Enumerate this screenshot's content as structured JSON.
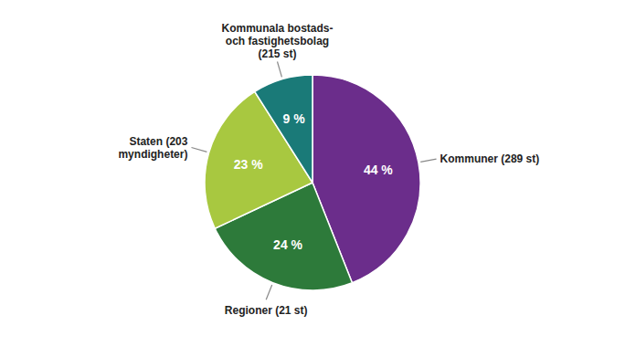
{
  "chart_data": {
    "type": "pie",
    "categories": [
      "Kommuner (289 st)",
      "Regioner (21 st)",
      "Staten (203\nmyndigheter)",
      "Kommunala bostads-\noch fastighetsbolag\n(215 st)"
    ],
    "values": [
      44,
      24,
      23,
      9
    ],
    "value_labels": [
      "44 %",
      "24 %",
      "23 %",
      "9 %"
    ],
    "colors": [
      "#6B2D8B",
      "#2D7A3A",
      "#A8C840",
      "#1A7A78"
    ],
    "data_labels": true
  }
}
